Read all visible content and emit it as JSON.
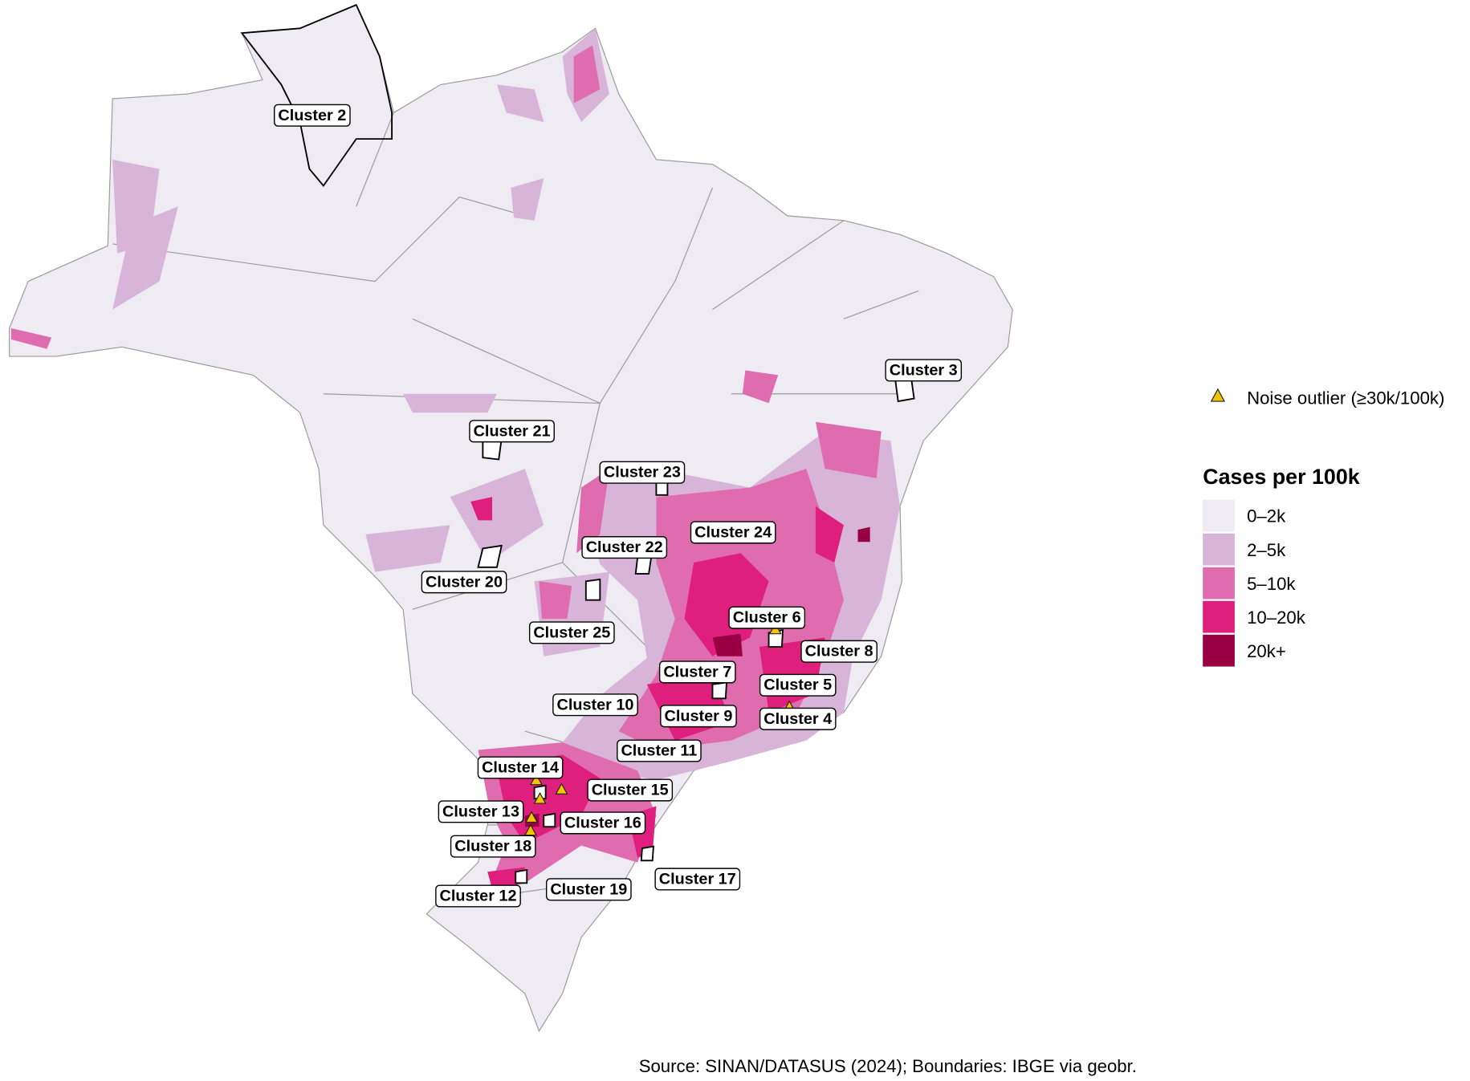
{
  "legend": {
    "outlier_label": "Noise outlier (≥30k/100k)",
    "title": "Cases per 100k",
    "items": [
      {
        "label": "0–2k",
        "color": "#eeebf3"
      },
      {
        "label": "2–5k",
        "color": "#d8b5d8"
      },
      {
        "label": "5–10k",
        "color": "#e06cb0"
      },
      {
        "label": "10–20k",
        "color": "#de1f7e"
      },
      {
        "label": "20k+",
        "color": "#980043"
      }
    ]
  },
  "clusters": [
    "Cluster 2",
    "Cluster 3",
    "Cluster 21",
    "Cluster 23",
    "Cluster 24",
    "Cluster 22",
    "Cluster 20",
    "Cluster 25",
    "Cluster 6",
    "Cluster 8",
    "Cluster 7",
    "Cluster 5",
    "Cluster 10",
    "Cluster 9",
    "Cluster 4",
    "Cluster 11",
    "Cluster 14",
    "Cluster 15",
    "Cluster 13",
    "Cluster 16",
    "Cluster 18",
    "Cluster 17",
    "Cluster 19",
    "Cluster 12"
  ],
  "source": "Source: SINAN/DATASUS (2024); Boundaries: IBGE via geobr."
}
